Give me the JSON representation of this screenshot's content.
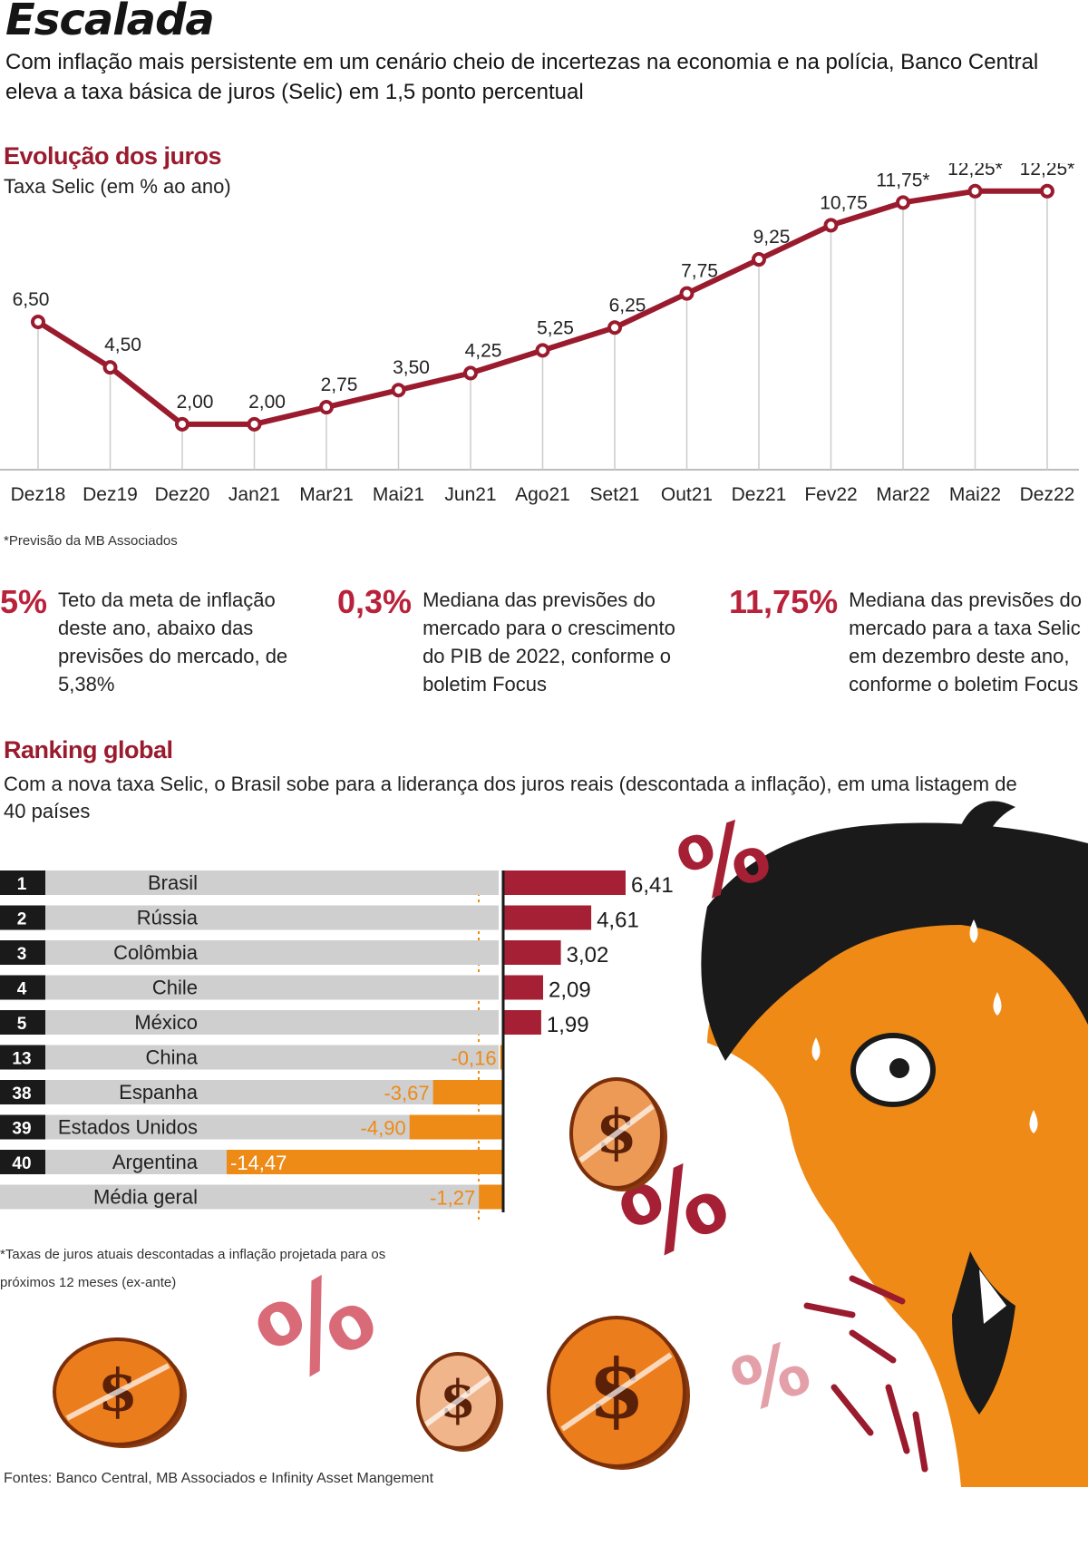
{
  "header": {
    "title": "Escalada",
    "subtitle": "Com inflação mais persistente em um cenário cheio de incertezas na economia e na polícia, Banco Central eleva a taxa básica de juros (Selic) em 1,5 ponto percentual"
  },
  "colors": {
    "line": "#9a1b2e",
    "positive_bar": "#a52035",
    "negative_bar": "#ee8a16",
    "row_bg": "#cfcfcf",
    "rank_box": "#1a1a1a",
    "accent_text": "#b8223a"
  },
  "chart_data": [
    {
      "type": "line",
      "title": "Evolução dos juros",
      "subtitle": "Taxa Selic (em % ao ano)",
      "categories": [
        "Dez18",
        "Dez19",
        "Dez20",
        "Jan21",
        "Mar21",
        "Mai21",
        "Jun21",
        "Ago21",
        "Set21",
        "Out21",
        "Dez21",
        "Fev22",
        "Mar22",
        "Mai22",
        "Dez22"
      ],
      "values": [
        6.5,
        4.5,
        2.0,
        2.0,
        2.75,
        3.5,
        4.25,
        5.25,
        6.25,
        7.75,
        9.25,
        10.75,
        11.75,
        12.25,
        12.25
      ],
      "value_labels": [
        "6,50",
        "4,50",
        "2,00",
        "2,00",
        "2,75",
        "3,50",
        "4,25",
        "5,25",
        "6,25",
        "7,75",
        "9,25",
        "10,75",
        "11,75*",
        "12,25*",
        "12,25*"
      ],
      "ylim": [
        0,
        13
      ],
      "grid": false,
      "note": "*Previsão da MB Associados"
    },
    {
      "type": "bar",
      "title": "Ranking global",
      "subtitle": "Com a nova taxa Selic, o Brasil sobe para a liderança dos juros reais (descontada a inflação), em uma listagem de 40 países",
      "orientation": "horizontal",
      "rows": [
        {
          "rank": "1",
          "country": "Brasil",
          "value": 6.41,
          "label": "6,41"
        },
        {
          "rank": "2",
          "country": "Rússia",
          "value": 4.61,
          "label": "4,61"
        },
        {
          "rank": "3",
          "country": "Colômbia",
          "value": 3.02,
          "label": "3,02"
        },
        {
          "rank": "4",
          "country": "Chile",
          "value": 2.09,
          "label": "2,09"
        },
        {
          "rank": "5",
          "country": "México",
          "value": 1.99,
          "label": "1,99"
        },
        {
          "rank": "13",
          "country": "China",
          "value": -0.16,
          "label": "-0,16"
        },
        {
          "rank": "38",
          "country": "Espanha",
          "value": -3.67,
          "label": "-3,67"
        },
        {
          "rank": "39",
          "country": "Estados Unidos",
          "value": -4.9,
          "label": "-4,90"
        },
        {
          "rank": "40",
          "country": "Argentina",
          "value": -14.47,
          "label": "-14,47"
        },
        {
          "rank": "",
          "country": "Média geral",
          "value": -1.27,
          "label": "-1,27"
        }
      ],
      "note": "*Taxas de juros atuais descontadas a inflação projetada para os próximos 12 meses (ex-ante)"
    }
  ],
  "stats": [
    {
      "value": "5%",
      "text": "Teto da meta de inflação deste ano, abaixo das previsões do mercado, de 5,38%"
    },
    {
      "value": "0,3%",
      "text": "Mediana das previsões do mercado para o crescimento do PIB de 2022, conforme o boletim Focus"
    },
    {
      "value": "11,75%",
      "text": "Mediana das previsões do mercado para a taxa Selic em dezembro deste ano, conforme o boletim Focus"
    }
  ],
  "illustration": {
    "icons": [
      "percent-symbol-icon",
      "dollar-coin-icon",
      "sweating-man-icon"
    ],
    "percent_glyph": "%",
    "dollar_glyph": "$"
  },
  "footer": {
    "sources": "Fontes: Banco Central, MB Associados e Infinity Asset Mangement"
  }
}
